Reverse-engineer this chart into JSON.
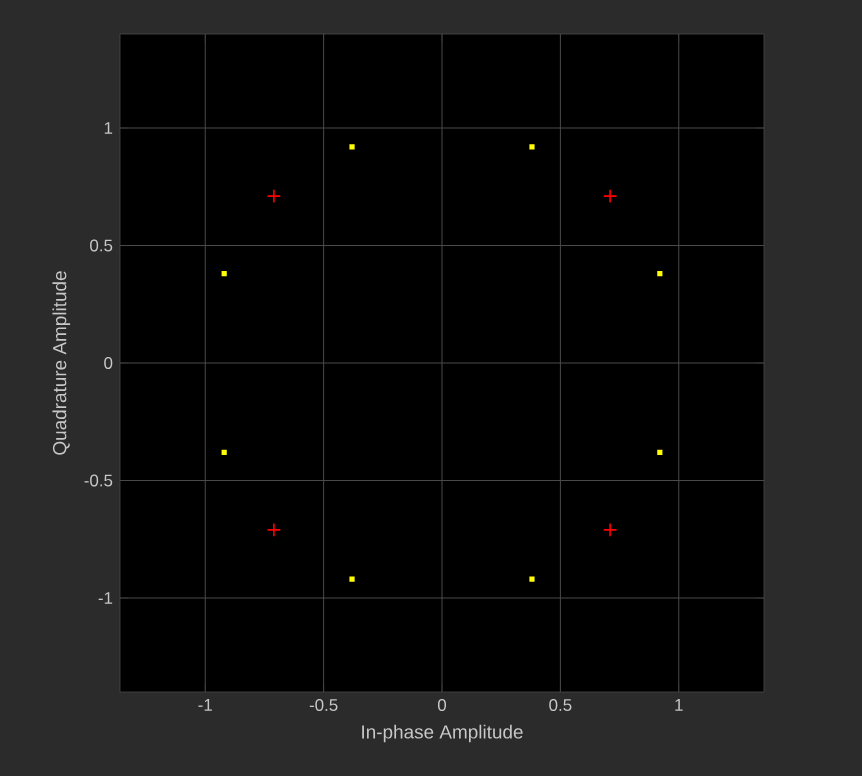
{
  "chart_data": {
    "type": "scatter",
    "xlabel": "In-phase Amplitude",
    "ylabel": "Quadrature Amplitude",
    "xlim": [
      -1.36,
      1.36
    ],
    "ylim": [
      -1.4,
      1.4
    ],
    "xticks": [
      -1,
      -0.5,
      0,
      0.5,
      1
    ],
    "yticks": [
      -1,
      -0.5,
      0,
      0.5,
      1
    ],
    "grid": true,
    "series": [
      {
        "color": "#ffff00",
        "marker": "square",
        "x": [
          0.92,
          0.38,
          -0.38,
          -0.92,
          -0.92,
          -0.38,
          0.38,
          0.92
        ],
        "values": [
          0.38,
          0.92,
          0.92,
          0.38,
          -0.38,
          -0.92,
          -0.92,
          -0.38
        ]
      },
      {
        "color": "#ff0000",
        "marker": "cross",
        "x": [
          0.71,
          -0.71,
          -0.71,
          0.71
        ],
        "values": [
          0.71,
          0.71,
          -0.71,
          -0.71
        ]
      }
    ]
  }
}
